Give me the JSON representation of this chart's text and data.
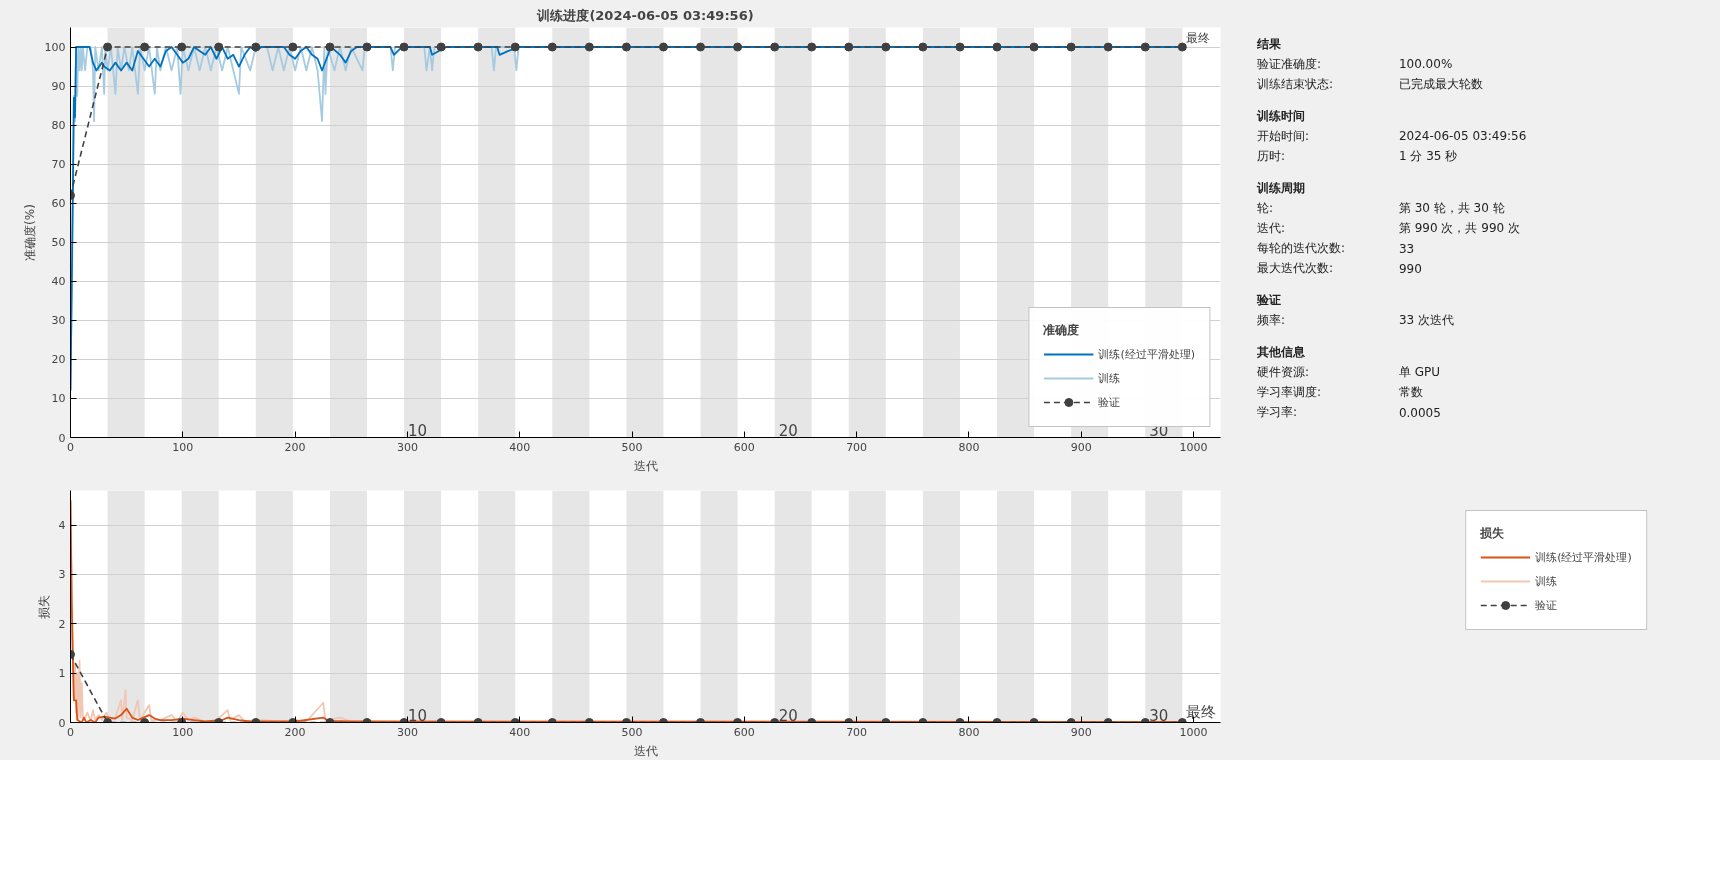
{
  "chart_data": [
    {
      "type": "line",
      "title": "训练进度(2024-06-05 03:49:56)",
      "xlabel": "迭代",
      "ylabel": "准确度(%)",
      "xlim": [
        0,
        1024
      ],
      "ylim": [
        0,
        105
      ],
      "xticks": [
        0,
        100,
        200,
        300,
        400,
        500,
        600,
        700,
        800,
        900,
        1000
      ],
      "yticks": [
        0,
        10,
        20,
        30,
        40,
        50,
        60,
        70,
        80,
        90,
        100
      ],
      "grid": "y",
      "legend": "bottom right",
      "legend_title": "准确度",
      "bands": [
        {
          "axis": "x",
          "from": 33,
          "to": 66,
          "color": "#e6e6e6"
        },
        {
          "axis": "x",
          "from": 99,
          "to": 132,
          "color": "#e6e6e6"
        },
        {
          "axis": "x",
          "from": 165,
          "to": 198,
          "color": "#e6e6e6"
        },
        {
          "axis": "x",
          "from": 231,
          "to": 264,
          "color": "#e6e6e6"
        },
        {
          "axis": "x",
          "from": 297,
          "to": 330,
          "color": "#e6e6e6"
        },
        {
          "axis": "x",
          "from": 363,
          "to": 396,
          "color": "#e6e6e6"
        },
        {
          "axis": "x",
          "from": 429,
          "to": 462,
          "color": "#e6e6e6"
        },
        {
          "axis": "x",
          "from": 495,
          "to": 528,
          "color": "#e6e6e6"
        },
        {
          "axis": "x",
          "from": 561,
          "to": 594,
          "color": "#e6e6e6"
        },
        {
          "axis": "x",
          "from": 627,
          "to": 660,
          "color": "#e6e6e6"
        },
        {
          "axis": "x",
          "from": 693,
          "to": 726,
          "color": "#e6e6e6"
        },
        {
          "axis": "x",
          "from": 759,
          "to": 792,
          "color": "#e6e6e6"
        },
        {
          "axis": "x",
          "from": 825,
          "to": 858,
          "color": "#e6e6e6"
        },
        {
          "axis": "x",
          "from": 891,
          "to": 924,
          "color": "#e6e6e6"
        },
        {
          "axis": "x",
          "from": 957,
          "to": 990,
          "color": "#e6e6e6"
        }
      ],
      "annotations": [
        {
          "text": "10",
          "x": 297,
          "y": 0
        },
        {
          "text": "20",
          "x": 627,
          "y": 0
        },
        {
          "text": "30",
          "x": 957,
          "y": 0
        },
        {
          "text": "最终",
          "x": 990,
          "y": 100
        }
      ],
      "series": [
        {
          "name": "训练",
          "color": "#a6cbe0",
          "line_style": "solid",
          "x": [
            0,
            2,
            3,
            4,
            5,
            6,
            7,
            8,
            9,
            10,
            11,
            13,
            15,
            18,
            20,
            21,
            22,
            25,
            28,
            30,
            31,
            33,
            36,
            40,
            42,
            45,
            48,
            52,
            55,
            60,
            62,
            66,
            70,
            75,
            77,
            80,
            85,
            90,
            95,
            98,
            100,
            105,
            110,
            115,
            120,
            125,
            130,
            135,
            140,
            145,
            150,
            152,
            160,
            165,
            175,
            180,
            185,
            190,
            195,
            200,
            205,
            210,
            215,
            220,
            224,
            226,
            227,
            229,
            235,
            240,
            245,
            250,
            260,
            262,
            285,
            287,
            289,
            315,
            317,
            320,
            322,
            324,
            375,
            377,
            379,
            395,
            397,
            399,
            990
          ],
          "values": [
            12,
            60,
            87.5,
            81,
            100,
            87.5,
            100,
            94,
            100,
            94,
            100,
            94,
            100,
            100,
            94,
            81,
            100,
            94,
            100,
            88,
            100,
            94,
            100,
            88,
            100,
            94,
            100,
            94,
            100,
            88,
            100,
            94,
            100,
            88,
            100,
            94,
            100,
            94,
            100,
            88,
            100,
            94,
            100,
            94,
            100,
            94,
            100,
            94,
            100,
            94,
            88,
            100,
            94,
            100,
            100,
            94,
            100,
            94,
            100,
            94,
            100,
            94,
            100,
            94,
            81,
            100,
            88,
            100,
            94,
            100,
            94,
            100,
            94,
            100,
            100,
            94,
            100,
            100,
            94,
            100,
            94,
            100,
            100,
            94,
            100,
            100,
            94,
            100,
            100
          ]
        },
        {
          "name": "训练(经过平滑处理)",
          "color": "#0072bd",
          "line_style": "solid",
          "x": [
            0,
            2,
            3,
            4,
            5,
            17,
            20,
            23,
            28,
            30,
            35,
            40,
            45,
            50,
            55,
            60,
            65,
            70,
            75,
            80,
            85,
            90,
            95,
            100,
            105,
            110,
            115,
            120,
            125,
            130,
            135,
            140,
            145,
            150,
            155,
            160,
            165,
            170,
            190,
            195,
            200,
            205,
            210,
            215,
            220,
            224,
            228,
            232,
            240,
            245,
            250,
            255,
            285,
            288,
            295,
            320,
            322,
            328,
            335,
            380,
            382,
            390,
            400,
            990
          ],
          "values": [
            12,
            60,
            87,
            82,
            100,
            100,
            96,
            94,
            96,
            95,
            94,
            96,
            94,
            96,
            94,
            99,
            97,
            95,
            97,
            95,
            99,
            100,
            98,
            96,
            97,
            100,
            99,
            98,
            100,
            97,
            100,
            97,
            98,
            95,
            98,
            100,
            99,
            100,
            100,
            98,
            97,
            99,
            100,
            98,
            97,
            94,
            97,
            100,
            98,
            96,
            99,
            100,
            100,
            98,
            100,
            100,
            98,
            99,
            100,
            100,
            98,
            99,
            100,
            100
          ]
        },
        {
          "name": "验证",
          "color": "#404040",
          "line_style": "dashed",
          "marker": "circle",
          "x": [
            0,
            33,
            66,
            99,
            132,
            165,
            198,
            231,
            264,
            297,
            330,
            363,
            396,
            429,
            462,
            495,
            528,
            561,
            594,
            627,
            660,
            693,
            726,
            759,
            792,
            825,
            858,
            891,
            924,
            957,
            990
          ],
          "values": [
            62,
            100,
            100,
            100,
            100,
            100,
            100,
            100,
            100,
            100,
            100,
            100,
            100,
            100,
            100,
            100,
            100,
            100,
            100,
            100,
            100,
            100,
            100,
            100,
            100,
            100,
            100,
            100,
            100,
            100,
            100
          ]
        }
      ]
    },
    {
      "type": "line",
      "xlabel": "迭代",
      "ylabel": "损失",
      "xlim": [
        0,
        1024
      ],
      "ylim": [
        0,
        4.7
      ],
      "xticks": [
        0,
        100,
        200,
        300,
        400,
        500,
        600,
        700,
        800,
        900,
        1000
      ],
      "yticks": [
        0,
        1,
        2,
        3,
        4
      ],
      "grid": "y",
      "legend": "right",
      "legend_title": "损失",
      "bands": [
        {
          "axis": "x",
          "from": 33,
          "to": 66,
          "color": "#e6e6e6"
        },
        {
          "axis": "x",
          "from": 99,
          "to": 132,
          "color": "#e6e6e6"
        },
        {
          "axis": "x",
          "from": 165,
          "to": 198,
          "color": "#e6e6e6"
        },
        {
          "axis": "x",
          "from": 231,
          "to": 264,
          "color": "#e6e6e6"
        },
        {
          "axis": "x",
          "from": 297,
          "to": 330,
          "color": "#e6e6e6"
        },
        {
          "axis": "x",
          "from": 363,
          "to": 396,
          "color": "#e6e6e6"
        },
        {
          "axis": "x",
          "from": 429,
          "to": 462,
          "color": "#e6e6e6"
        },
        {
          "axis": "x",
          "from": 495,
          "to": 528,
          "color": "#e6e6e6"
        },
        {
          "axis": "x",
          "from": 561,
          "to": 594,
          "color": "#e6e6e6"
        },
        {
          "axis": "x",
          "from": 627,
          "to": 660,
          "color": "#e6e6e6"
        },
        {
          "axis": "x",
          "from": 693,
          "to": 726,
          "color": "#e6e6e6"
        },
        {
          "axis": "x",
          "from": 759,
          "to": 792,
          "color": "#e6e6e6"
        },
        {
          "axis": "x",
          "from": 825,
          "to": 858,
          "color": "#e6e6e6"
        },
        {
          "axis": "x",
          "from": 891,
          "to": 924,
          "color": "#e6e6e6"
        },
        {
          "axis": "x",
          "from": 957,
          "to": 990,
          "color": "#e6e6e6"
        }
      ],
      "annotations": [
        {
          "text": "10",
          "x": 297,
          "y": 0
        },
        {
          "text": "20",
          "x": 627,
          "y": 0
        },
        {
          "text": "30",
          "x": 957,
          "y": 0
        },
        {
          "text": "最终",
          "x": 990,
          "y": 0
        }
      ],
      "series": [
        {
          "name": "训练",
          "color": "#efc7b2",
          "line_style": "solid",
          "x": [
            0,
            1,
            2,
            3,
            4,
            5,
            6,
            7,
            8,
            9,
            10,
            11,
            12,
            15,
            18,
            20,
            22,
            25,
            28,
            32,
            35,
            40,
            45,
            46,
            49,
            50,
            55,
            60,
            62,
            70,
            72,
            80,
            90,
            95,
            100,
            105,
            110,
            120,
            130,
            140,
            142,
            150,
            155,
            170,
            190,
            200,
            210,
            225,
            227,
            240,
            250,
            300,
            400,
            990
          ],
          "values": [
            4.5,
            3.0,
            1.5,
            0.45,
            1.2,
            0.2,
            1.0,
            0.05,
            1.25,
            0.1,
            0.8,
            0.1,
            0.05,
            0.2,
            0.02,
            0.25,
            0.05,
            0.15,
            0.05,
            0.2,
            0.05,
            0.1,
            0.45,
            0.05,
            0.65,
            0.1,
            0.05,
            0.45,
            0.05,
            0.35,
            0.05,
            0.05,
            0.15,
            0.02,
            0.2,
            0.05,
            0.1,
            0.02,
            0.05,
            0.25,
            0.05,
            0.15,
            0.02,
            0.05,
            0.02,
            0.05,
            0.02,
            0.4,
            0.05,
            0.1,
            0.02,
            0.01,
            0.02,
            0.01
          ]
        },
        {
          "name": "训练(经过平滑处理)",
          "color": "#d95319",
          "line_style": "solid",
          "x": [
            0,
            1,
            2,
            3,
            5,
            6,
            10,
            12,
            14,
            18,
            22,
            25,
            30,
            35,
            40,
            45,
            50,
            55,
            60,
            65,
            70,
            75,
            80,
            90,
            100,
            110,
            120,
            135,
            140,
            150,
            160,
            200,
            225,
            230,
            250,
            990
          ],
          "values": [
            4.5,
            2.5,
            1.4,
            0.45,
            0.45,
            0.05,
            0.0,
            0.1,
            0.0,
            0.05,
            0.0,
            0.1,
            0.12,
            0.1,
            0.08,
            0.15,
            0.28,
            0.1,
            0.05,
            0.1,
            0.15,
            0.08,
            0.05,
            0.05,
            0.08,
            0.05,
            0.02,
            0.05,
            0.1,
            0.05,
            0.02,
            0.02,
            0.1,
            0.03,
            0.02,
            0.01
          ]
        },
        {
          "name": "验证",
          "color": "#404040",
          "line_style": "dashed",
          "marker": "circle",
          "x": [
            0,
            33,
            66,
            99,
            132,
            165,
            198,
            231,
            264,
            297,
            330,
            363,
            396,
            429,
            462,
            495,
            528,
            561,
            594,
            627,
            660,
            693,
            726,
            759,
            792,
            825,
            858,
            891,
            924,
            957,
            990
          ],
          "values": [
            1.38,
            0,
            0,
            0,
            0,
            0,
            0,
            0,
            0,
            0,
            0,
            0,
            0,
            0,
            0,
            0,
            0,
            0,
            0,
            0,
            0,
            0,
            0,
            0,
            0,
            0,
            0,
            0,
            0,
            0,
            0
          ]
        }
      ]
    },
    {
      "type": "other",
      "annotations": [
        "结果",
        "验证准确度:",
        "训练结束状态:",
        "训练时间",
        "开始时间:",
        "历时:",
        "训练周期",
        "轮:",
        "迭代:",
        "每轮的迭代次数:",
        "最大迭代次数:",
        "验证",
        "频率:",
        "其他信息",
        "硬件资源:",
        "学习率调度:",
        "学习率:"
      ],
      "value_labels": [
        null,
        "100.00%",
        "已完成最大轮数",
        null,
        "2024-06-05 03:49:56",
        "1 分 35 秒",
        null,
        "第 30 轮，共 30 轮",
        "第 990 次，共 990 次",
        "33",
        "990",
        null,
        "33 次迭代",
        null,
        "单 GPU",
        "常数",
        "0.0005"
      ]
    }
  ]
}
